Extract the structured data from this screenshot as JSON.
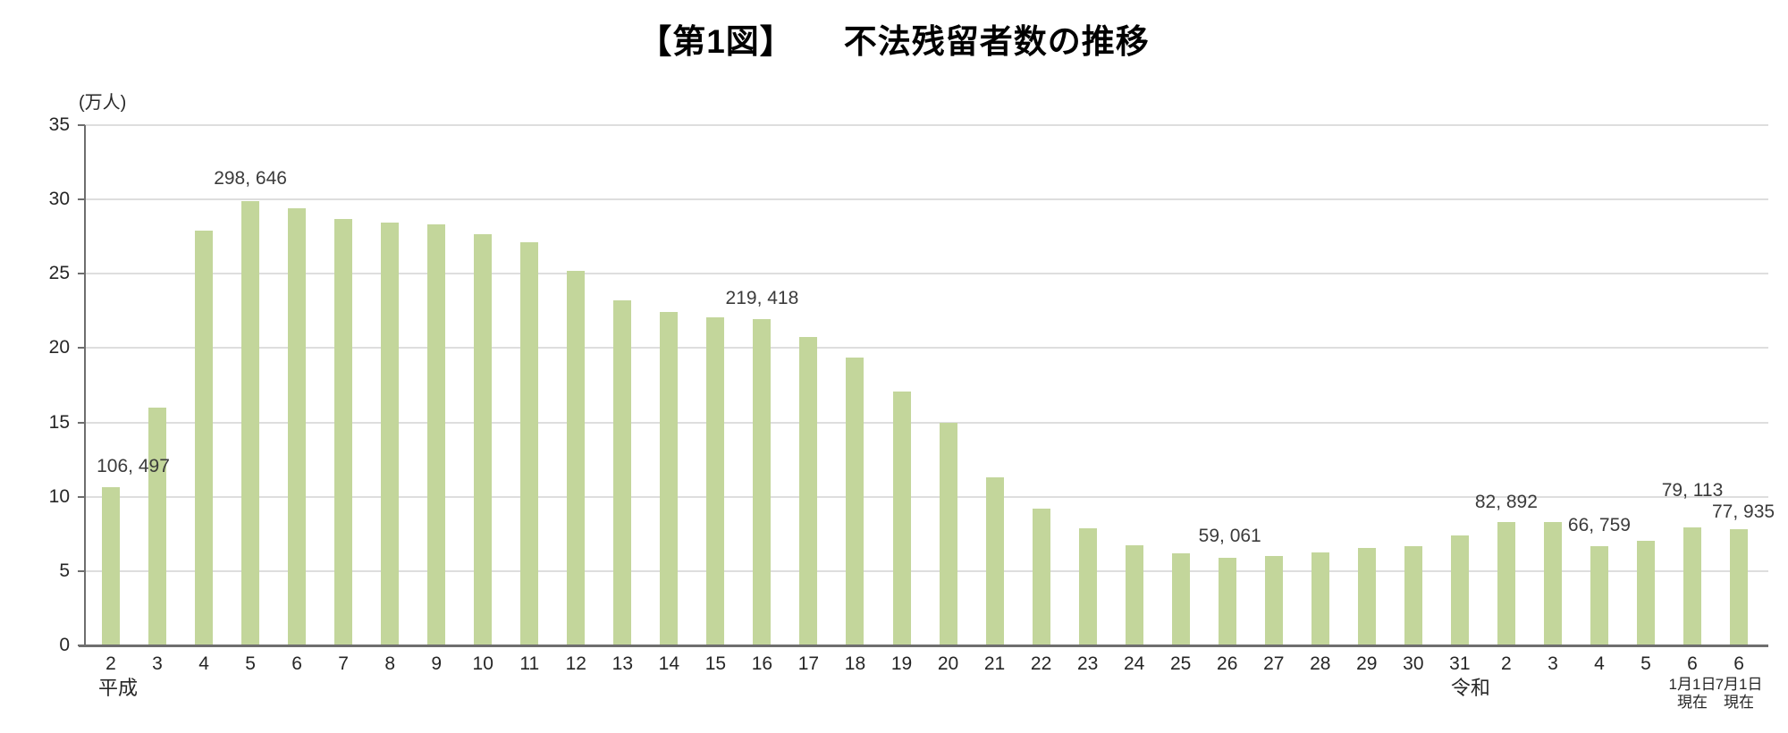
{
  "title": {
    "fig_label": "【第1図】",
    "main": "不法残留者数の推移"
  },
  "colors": {
    "bar": "#c3d69b",
    "gridline": "#dedede",
    "axis": "#6e6e6e",
    "text": "#262626"
  },
  "chart_data": {
    "type": "bar",
    "title": "【第1図】 不法残留者数の推移",
    "unit_label": "(万人)",
    "ylabel": "万人",
    "ylim": [
      0,
      35
    ],
    "y_ticks": [
      0,
      5,
      10,
      15,
      20,
      25,
      30,
      35
    ],
    "grid": true,
    "legend": "none",
    "categories": [
      "2",
      "3",
      "4",
      "5",
      "6",
      "7",
      "8",
      "9",
      "10",
      "11",
      "12",
      "13",
      "14",
      "15",
      "16",
      "17",
      "18",
      "19",
      "20",
      "21",
      "22",
      "23",
      "24",
      "25",
      "26",
      "27",
      "28",
      "29",
      "30",
      "31",
      "2",
      "3",
      "4",
      "5",
      "6",
      "6"
    ],
    "era_groups": [
      {
        "label": "平成",
        "index": 0,
        "dx": 8
      },
      {
        "label": "令和",
        "index": 30,
        "dx": -40
      }
    ],
    "category_sublabels": [
      {
        "index": 34,
        "lines": [
          "1月1日",
          "現在"
        ]
      },
      {
        "index": 35,
        "lines": [
          "7月1日",
          "現在"
        ]
      }
    ],
    "values_man": [
      10.65,
      15.98,
      27.89,
      29.86,
      29.38,
      28.67,
      28.45,
      28.3,
      27.68,
      27.1,
      25.17,
      23.21,
      22.41,
      22.06,
      21.94,
      20.73,
      19.37,
      17.08,
      14.98,
      11.31,
      9.18,
      7.85,
      6.71,
      6.2,
      5.91,
      6.0,
      6.28,
      6.53,
      6.65,
      7.42,
      8.29,
      8.29,
      6.68,
      7.05,
      7.91,
      7.79
    ],
    "point_labels": [
      {
        "index": 0,
        "text": "106,497",
        "dx": 25,
        "gap": 12
      },
      {
        "index": 3,
        "text": "298,646",
        "dx": 0,
        "gap": 14
      },
      {
        "index": 14,
        "text": "219,418",
        "dx": 0,
        "gap": 12
      },
      {
        "index": 24,
        "text": "59,061",
        "dx": 3,
        "gap": 13
      },
      {
        "index": 30,
        "text": "82,892",
        "dx": 0,
        "gap": 11
      },
      {
        "index": 32,
        "text": "66,759",
        "dx": 0,
        "gap": 12
      },
      {
        "index": 34,
        "text": "79,113",
        "dx": 0,
        "gap": 30
      },
      {
        "index": 35,
        "text": "77,935",
        "dx": 5,
        "gap": 8
      }
    ]
  }
}
